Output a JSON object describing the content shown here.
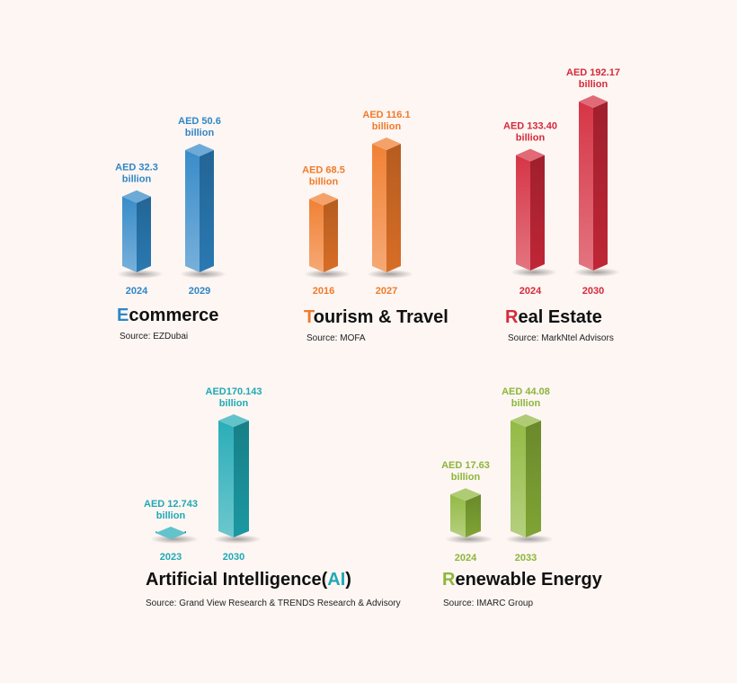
{
  "chart_data": [
    {
      "type": "bar",
      "key": "ecommerce",
      "title": {
        "accent": "E",
        "rest": "commerce",
        "suffix": "",
        "suffix_accent": ""
      },
      "source": "Source: EZDubai",
      "color": "#2f86c6",
      "categories": [
        "2024",
        "2029"
      ],
      "values": [
        32.3,
        50.6
      ],
      "value_labels": [
        [
          "AED 32.3",
          "billion"
        ],
        [
          "AED 50.6",
          "billion"
        ]
      ],
      "unit": "AED billion"
    },
    {
      "type": "bar",
      "key": "tourism",
      "title": {
        "accent": "T",
        "rest": "ourism & Travel",
        "suffix": "",
        "suffix_accent": ""
      },
      "source": "Source: MOFA",
      "color": "#f07a2a",
      "categories": [
        "2016",
        "2027"
      ],
      "values": [
        68.5,
        116.1
      ],
      "value_labels": [
        [
          "AED 68.5",
          "billion"
        ],
        [
          "AED 116.1",
          "billion"
        ]
      ],
      "unit": "AED billion"
    },
    {
      "type": "bar",
      "key": "realestate",
      "title": {
        "accent": "R",
        "rest": "eal Estate",
        "suffix": "",
        "suffix_accent": ""
      },
      "source": "Source: MarkNtel Advisors",
      "color": "#d42a3c",
      "categories": [
        "2024",
        "2030"
      ],
      "values": [
        133.4,
        192.17
      ],
      "value_labels": [
        [
          "AED 133.40",
          "billion"
        ],
        [
          "AED 192.17",
          "billion"
        ]
      ],
      "unit": "AED billion"
    },
    {
      "type": "bar",
      "key": "ai",
      "title": {
        "accent": "",
        "rest": "Artificial Intelligence(",
        "suffix_accent": "AI",
        "suffix": ")"
      },
      "source": "Source: Grand View Research & TRENDS Research & Advisory",
      "color": "#1fa9b4",
      "categories": [
        "2023",
        "2030"
      ],
      "values": [
        12.743,
        170.143
      ],
      "value_labels": [
        [
          "AED 12.743",
          "billion"
        ],
        [
          "AED170.143",
          "billion"
        ]
      ],
      "unit": "AED billion"
    },
    {
      "type": "bar",
      "key": "renewable",
      "title": {
        "accent": "R",
        "rest": "enewable Energy",
        "suffix": "",
        "suffix_accent": ""
      },
      "source": "Source: IMARC Group",
      "color": "#8db63a",
      "categories": [
        "2024",
        "2033"
      ],
      "values": [
        17.63,
        44.08
      ],
      "value_labels": [
        [
          "AED 17.63",
          "billion"
        ],
        [
          "AED 44.08",
          "billion"
        ]
      ],
      "unit": "AED billion"
    }
  ]
}
